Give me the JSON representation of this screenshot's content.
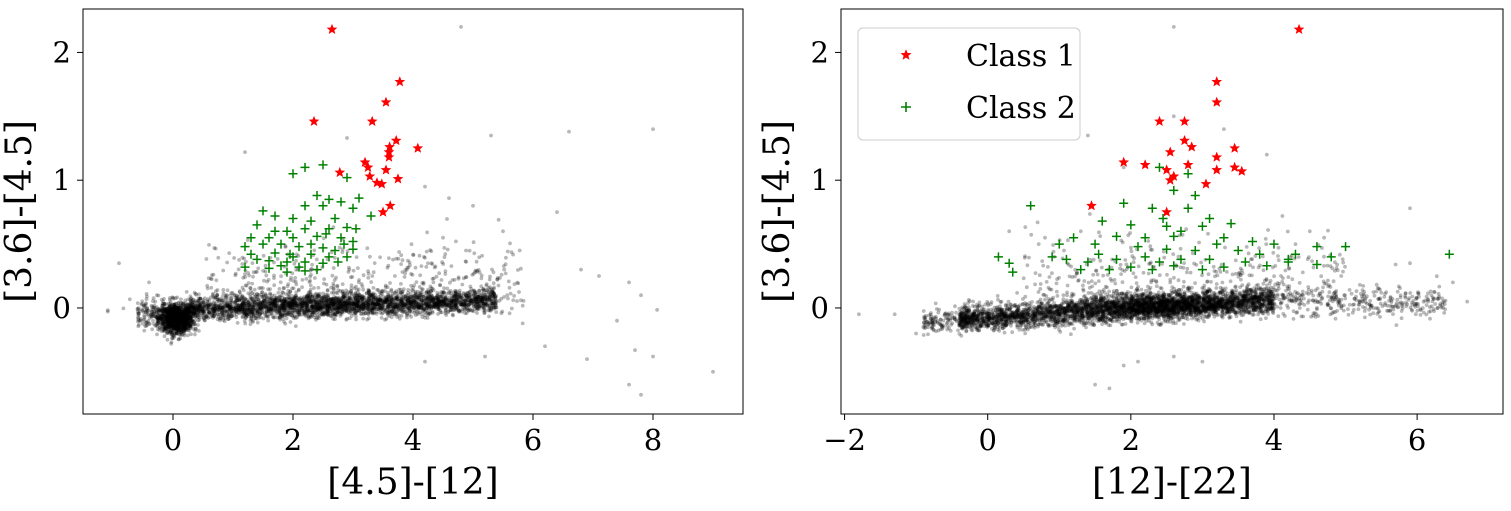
{
  "chart_data": [
    {
      "type": "scatter",
      "xlabel": "[4.5]-[12]",
      "ylabel": "[3.6]-[4.5]",
      "xlim": [
        -1.5,
        9.5
      ],
      "ylim": [
        -0.83,
        2.34
      ],
      "xticks": [
        0,
        2,
        4,
        6,
        8
      ],
      "xtick_labels": [
        "0",
        "2",
        "4",
        "6",
        "8"
      ],
      "yticks": [
        0,
        1,
        2
      ],
      "ytick_labels": [
        "0",
        "1",
        "2"
      ],
      "grid": false,
      "series": [
        {
          "name": "Class 1",
          "marker": "star",
          "color": "#ff0000",
          "points": [
            [
              2.65,
              2.18
            ],
            [
              3.78,
              1.77
            ],
            [
              3.55,
              1.61
            ],
            [
              2.35,
              1.46
            ],
            [
              3.32,
              1.46
            ],
            [
              3.72,
              1.31
            ],
            [
              3.61,
              1.26
            ],
            [
              4.08,
              1.25
            ],
            [
              3.6,
              1.22
            ],
            [
              3.6,
              1.18
            ],
            [
              3.2,
              1.14
            ],
            [
              3.25,
              1.1
            ],
            [
              3.55,
              1.08
            ],
            [
              2.78,
              1.06
            ],
            [
              3.28,
              1.03
            ],
            [
              3.75,
              1.01
            ],
            [
              3.4,
              0.98
            ],
            [
              3.48,
              0.97
            ],
            [
              3.62,
              0.8
            ],
            [
              3.5,
              0.75
            ]
          ]
        },
        {
          "name": "Class 2",
          "marker": "plus",
          "color": "#008000",
          "points": [
            [
              2.2,
              1.1
            ],
            [
              2.5,
              1.12
            ],
            [
              2.0,
              1.05
            ],
            [
              2.9,
              1.02
            ],
            [
              2.4,
              0.88
            ],
            [
              2.6,
              0.85
            ],
            [
              2.8,
              0.83
            ],
            [
              3.1,
              0.86
            ],
            [
              2.2,
              0.8
            ],
            [
              2.5,
              0.8
            ],
            [
              3.0,
              0.78
            ],
            [
              1.5,
              0.76
            ],
            [
              1.7,
              0.72
            ],
            [
              2.0,
              0.7
            ],
            [
              2.3,
              0.68
            ],
            [
              2.7,
              0.7
            ],
            [
              3.3,
              0.72
            ],
            [
              1.4,
              0.65
            ],
            [
              1.9,
              0.6
            ],
            [
              2.2,
              0.62
            ],
            [
              2.6,
              0.62
            ],
            [
              2.9,
              0.63
            ],
            [
              1.3,
              0.55
            ],
            [
              1.6,
              0.55
            ],
            [
              2.0,
              0.55
            ],
            [
              2.4,
              0.56
            ],
            [
              2.8,
              0.55
            ],
            [
              3.0,
              0.52
            ],
            [
              1.2,
              0.48
            ],
            [
              1.5,
              0.5
            ],
            [
              1.8,
              0.5
            ],
            [
              2.1,
              0.48
            ],
            [
              2.5,
              0.47
            ],
            [
              2.7,
              0.45
            ],
            [
              3.0,
              0.46
            ],
            [
              1.3,
              0.42
            ],
            [
              1.7,
              0.43
            ],
            [
              1.95,
              0.42
            ],
            [
              2.3,
              0.42
            ],
            [
              2.6,
              0.4
            ],
            [
              2.9,
              0.4
            ],
            [
              1.4,
              0.38
            ],
            [
              1.6,
              0.37
            ],
            [
              1.9,
              0.36
            ],
            [
              2.2,
              0.36
            ],
            [
              2.5,
              0.35
            ],
            [
              2.75,
              0.36
            ],
            [
              1.8,
              0.33
            ],
            [
              2.1,
              0.32
            ],
            [
              2.4,
              0.3
            ],
            [
              1.6,
              0.31
            ],
            [
              1.9,
              0.28
            ],
            [
              2.2,
              0.29
            ],
            [
              1.2,
              0.32
            ],
            [
              2.0,
              0.4
            ],
            [
              2.3,
              0.5
            ],
            [
              1.7,
              0.6
            ],
            [
              2.55,
              0.58
            ],
            [
              2.85,
              0.5
            ],
            [
              3.05,
              0.62
            ]
          ]
        },
        {
          "name": "",
          "marker": "dot",
          "color": "#000000",
          "outliers": [
            [
              4.8,
              2.2
            ],
            [
              1.2,
              1.22
            ],
            [
              2.9,
              1.33
            ],
            [
              5.3,
              1.35
            ],
            [
              6.6,
              1.38
            ],
            [
              8.0,
              1.4
            ],
            [
              4.2,
              0.95
            ],
            [
              4.6,
              0.86
            ],
            [
              5.0,
              0.8
            ],
            [
              6.4,
              0.75
            ],
            [
              5.5,
              0.6
            ],
            [
              4.5,
              0.55
            ],
            [
              6.8,
              0.3
            ],
            [
              7.1,
              0.25
            ],
            [
              7.6,
              0.2
            ],
            [
              7.8,
              0.1
            ],
            [
              7.4,
              -0.1
            ],
            [
              -0.9,
              0.35
            ],
            [
              -0.4,
              0.2
            ],
            [
              6.2,
              -0.3
            ],
            [
              5.2,
              -0.38
            ],
            [
              6.9,
              -0.4
            ],
            [
              7.7,
              -0.33
            ],
            [
              8.0,
              -0.38
            ],
            [
              7.6,
              -0.6
            ],
            [
              7.8,
              -0.68
            ],
            [
              9.0,
              -0.5
            ],
            [
              4.2,
              -0.42
            ]
          ]
        }
      ]
    },
    {
      "type": "scatter",
      "xlabel": "[12]-[22]",
      "ylabel": "[3.6]-[4.5]",
      "xlim": [
        -2.05,
        7.2
      ],
      "ylim": [
        -0.83,
        2.34
      ],
      "xticks": [
        -2,
        0,
        2,
        4,
        6
      ],
      "xtick_labels": [
        "−2",
        "0",
        "2",
        "4",
        "6"
      ],
      "yticks": [
        0,
        1,
        2
      ],
      "ytick_labels": [
        "0",
        "1",
        "2"
      ],
      "grid": false,
      "legend": {
        "position": "top-left",
        "entries": [
          "Class 1",
          "Class 2"
        ]
      },
      "series": [
        {
          "name": "Class 1",
          "marker": "star",
          "color": "#ff0000",
          "points": [
            [
              4.35,
              2.18
            ],
            [
              3.2,
              1.77
            ],
            [
              3.2,
              1.61
            ],
            [
              2.4,
              1.46
            ],
            [
              2.75,
              1.46
            ],
            [
              2.75,
              1.31
            ],
            [
              2.85,
              1.26
            ],
            [
              3.45,
              1.25
            ],
            [
              2.55,
              1.22
            ],
            [
              3.2,
              1.18
            ],
            [
              1.9,
              1.14
            ],
            [
              2.2,
              1.12
            ],
            [
              2.8,
              1.12
            ],
            [
              3.45,
              1.1
            ],
            [
              2.5,
              1.08
            ],
            [
              3.2,
              1.08
            ],
            [
              3.55,
              1.07
            ],
            [
              2.6,
              1.03
            ],
            [
              2.55,
              1.0
            ],
            [
              3.05,
              0.97
            ],
            [
              1.45,
              0.8
            ],
            [
              2.5,
              0.75
            ]
          ]
        },
        {
          "name": "Class 2",
          "marker": "plus",
          "color": "#008000",
          "points": [
            [
              2.4,
              1.1
            ],
            [
              2.8,
              1.05
            ],
            [
              2.6,
              0.92
            ],
            [
              2.9,
              0.88
            ],
            [
              0.6,
              0.8
            ],
            [
              1.9,
              0.82
            ],
            [
              2.3,
              0.78
            ],
            [
              2.8,
              0.78
            ],
            [
              3.1,
              0.7
            ],
            [
              1.6,
              0.68
            ],
            [
              2.0,
              0.65
            ],
            [
              2.5,
              0.64
            ],
            [
              3.0,
              0.64
            ],
            [
              3.4,
              0.66
            ],
            [
              1.2,
              0.55
            ],
            [
              1.8,
              0.56
            ],
            [
              2.2,
              0.55
            ],
            [
              2.6,
              0.56
            ],
            [
              3.3,
              0.55
            ],
            [
              3.7,
              0.52
            ],
            [
              4.0,
              0.5
            ],
            [
              4.6,
              0.48
            ],
            [
              5.0,
              0.48
            ],
            [
              1.5,
              0.5
            ],
            [
              2.1,
              0.48
            ],
            [
              2.5,
              0.46
            ],
            [
              2.9,
              0.45
            ],
            [
              3.5,
              0.45
            ],
            [
              4.3,
              0.42
            ],
            [
              4.8,
              0.4
            ],
            [
              6.45,
              0.42
            ],
            [
              0.15,
              0.4
            ],
            [
              0.3,
              0.35
            ],
            [
              0.9,
              0.4
            ],
            [
              1.1,
              0.38
            ],
            [
              1.4,
              0.36
            ],
            [
              1.8,
              0.38
            ],
            [
              2.2,
              0.4
            ],
            [
              2.4,
              0.36
            ],
            [
              2.7,
              0.38
            ],
            [
              3.1,
              0.38
            ],
            [
              3.6,
              0.36
            ],
            [
              3.9,
              0.33
            ],
            [
              4.2,
              0.36
            ],
            [
              4.6,
              0.34
            ],
            [
              0.35,
              0.28
            ],
            [
              1.3,
              0.3
            ],
            [
              1.7,
              0.3
            ],
            [
              2.0,
              0.32
            ],
            [
              2.3,
              0.3
            ],
            [
              2.6,
              0.33
            ],
            [
              3.0,
              0.3
            ],
            [
              3.3,
              0.32
            ],
            [
              1.55,
              0.42
            ],
            [
              2.7,
              0.6
            ],
            [
              3.2,
              0.5
            ],
            [
              4.2,
              0.38
            ],
            [
              1.0,
              0.5
            ],
            [
              2.45,
              0.7
            ],
            [
              3.8,
              0.42
            ]
          ]
        },
        {
          "name": "",
          "marker": "dot",
          "color": "#000000",
          "outliers": [
            [
              2.6,
              2.2
            ],
            [
              1.4,
              1.35
            ],
            [
              2.6,
              1.5
            ],
            [
              3.3,
              1.4
            ],
            [
              3.9,
              1.2
            ],
            [
              1.9,
              1.1
            ],
            [
              0.3,
              0.6
            ],
            [
              0.8,
              0.55
            ],
            [
              1.3,
              0.6
            ],
            [
              4.5,
              0.6
            ],
            [
              4.7,
              0.55
            ],
            [
              4.3,
              0.5
            ],
            [
              5.7,
              0.34
            ],
            [
              5.9,
              0.35
            ],
            [
              6.5,
              0.2
            ],
            [
              6.2,
              0.1
            ],
            [
              6.7,
              0.05
            ],
            [
              5.9,
              0.78
            ],
            [
              -1.8,
              -0.05
            ],
            [
              -1.3,
              -0.05
            ],
            [
              -0.9,
              -0.15
            ],
            [
              -1.0,
              -0.2
            ],
            [
              1.5,
              -0.6
            ],
            [
              1.7,
              -0.63
            ],
            [
              1.9,
              -0.45
            ],
            [
              2.1,
              -0.42
            ],
            [
              3.0,
              -0.42
            ],
            [
              2.6,
              -0.38
            ]
          ]
        }
      ]
    }
  ]
}
